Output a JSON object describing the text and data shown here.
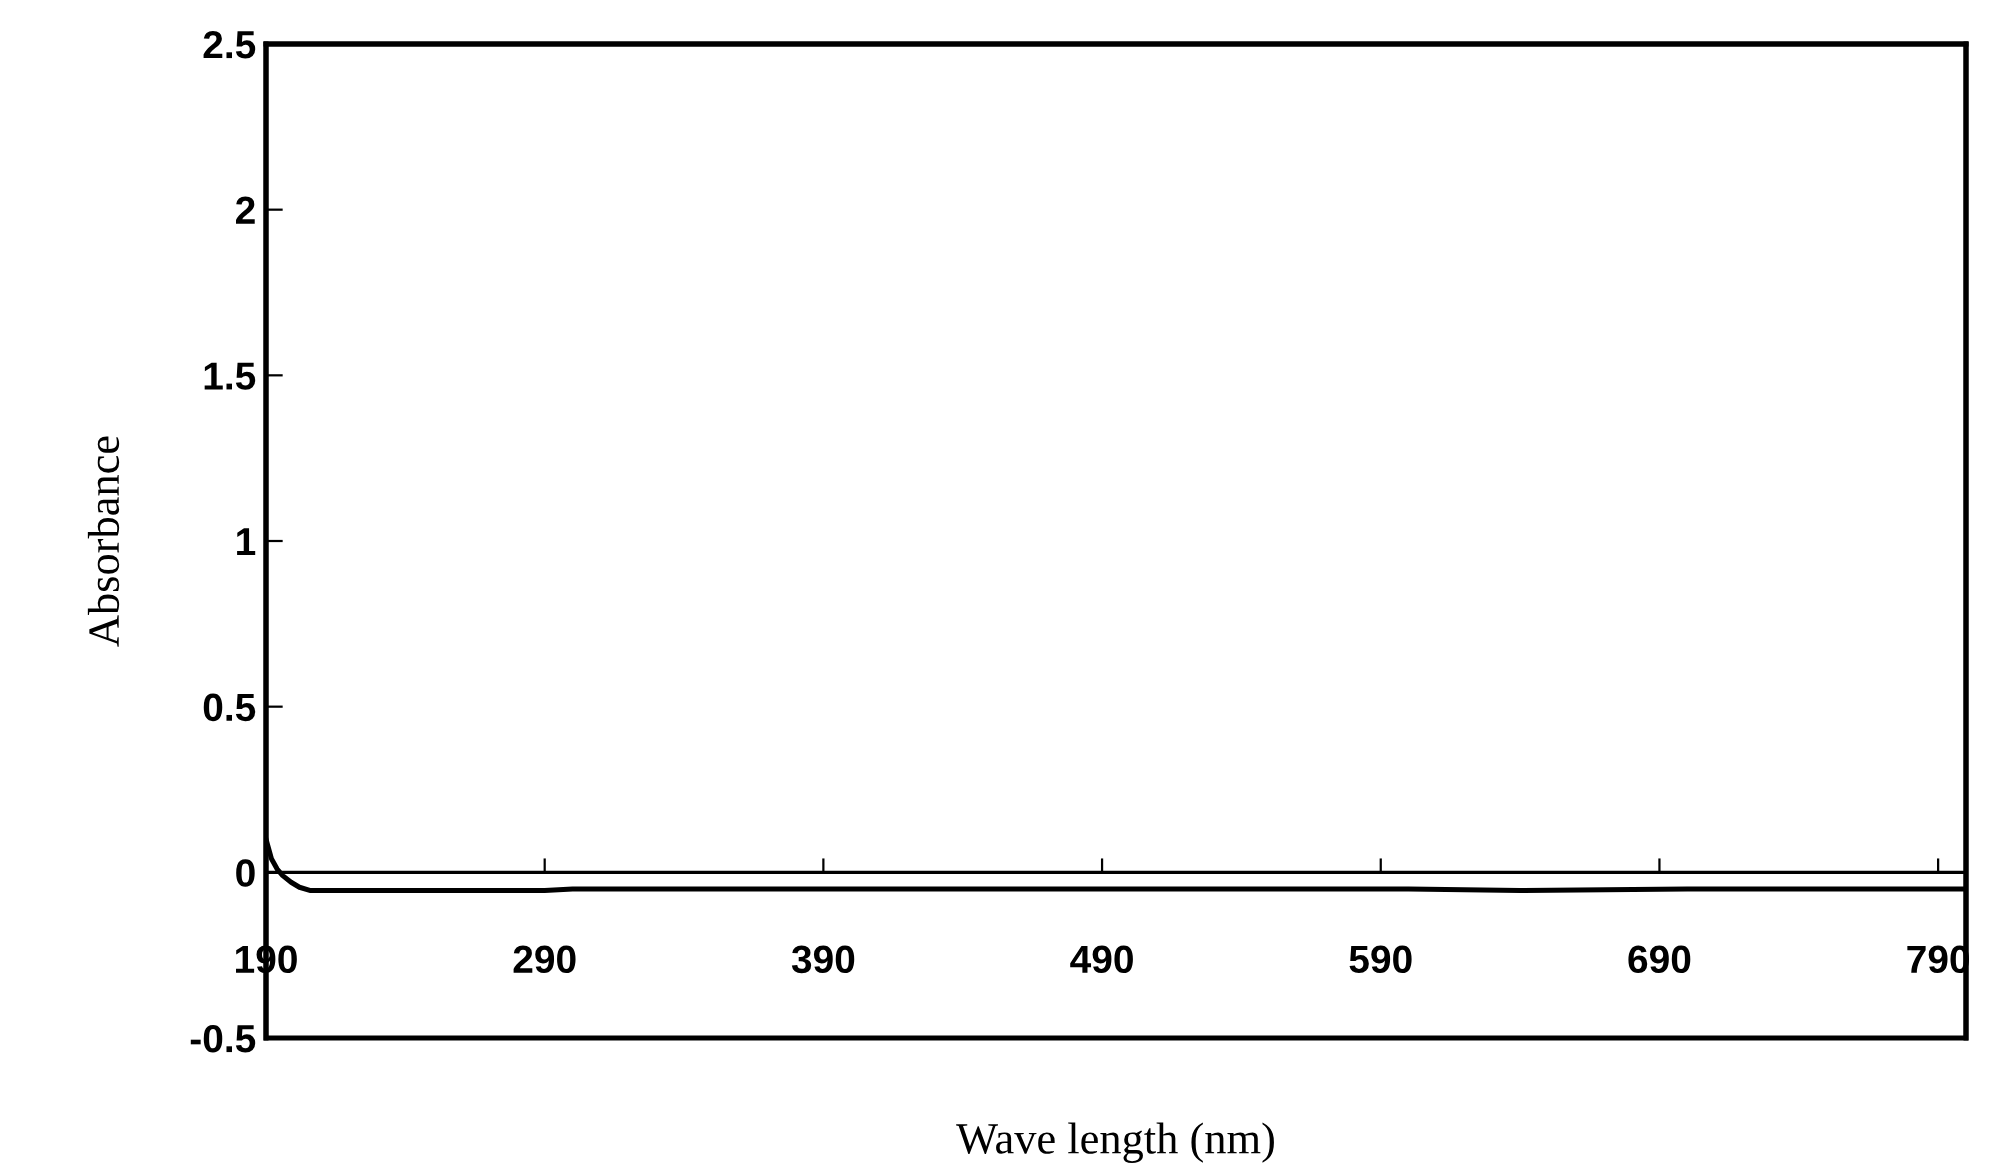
{
  "chart_data": {
    "type": "line",
    "xlabel": "Wave length (nm)",
    "ylabel": "Absorbance",
    "series": [
      {
        "color": "#000000",
        "x": [
          190,
          191,
          192,
          194,
          196,
          199,
          202,
          206,
          210,
          250,
          290,
          300,
          350,
          400,
          500,
          600,
          640,
          700,
          760,
          800
        ],
        "values": [
          0.1,
          0.07,
          0.04,
          0.01,
          -0.01,
          -0.03,
          -0.045,
          -0.055,
          -0.055,
          -0.055,
          -0.055,
          -0.05,
          -0.05,
          -0.05,
          -0.05,
          -0.05,
          -0.055,
          -0.05,
          -0.05,
          -0.05
        ]
      }
    ],
    "xlim": [
      190,
      800
    ],
    "ylim": [
      -0.5,
      2.5
    ],
    "xticks": [
      190,
      290,
      390,
      490,
      590,
      690,
      790
    ],
    "yticks": [
      -0.5,
      0,
      0.5,
      1,
      1.5,
      2,
      2.5
    ],
    "grid": false,
    "legend": false
  }
}
